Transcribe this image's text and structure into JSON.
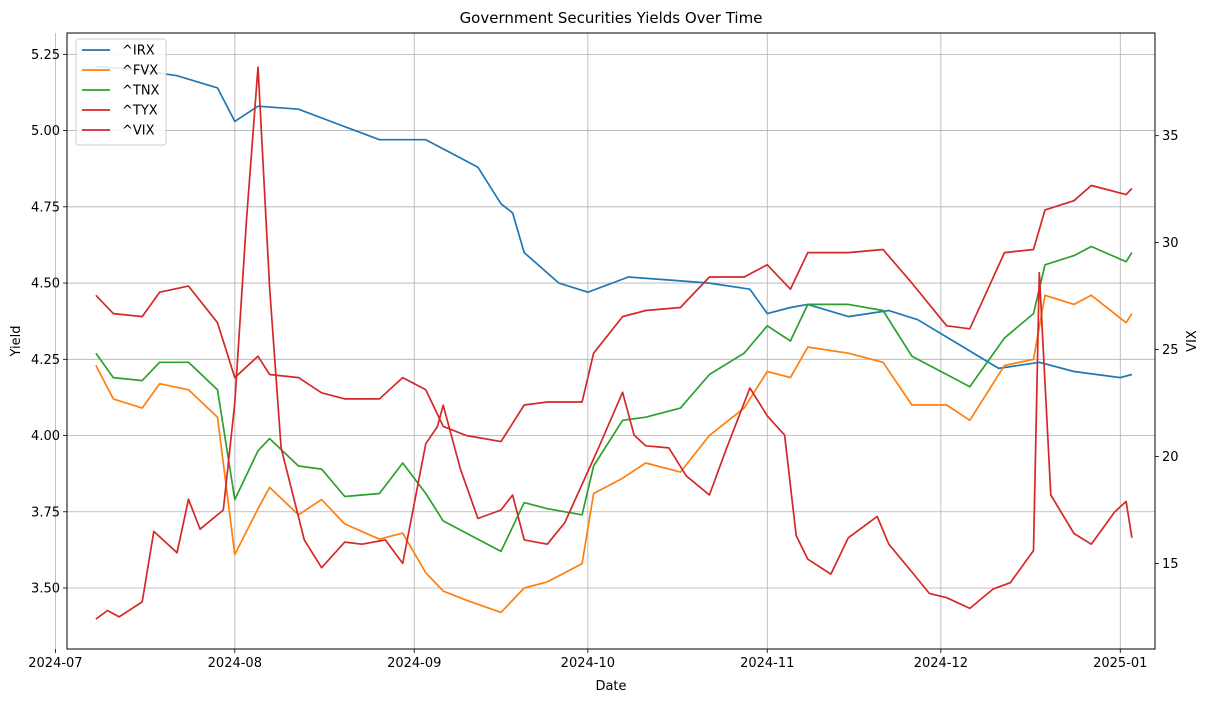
{
  "chart_data": {
    "type": "line",
    "title": "Government Securities Yields Over Time",
    "xlabel": "Date",
    "ylabel": "Yield",
    "y2label": "VIX",
    "xlim": [
      "2024-07-03",
      "2025-01-07"
    ],
    "ylim": [
      3.3,
      5.32
    ],
    "y2lim": [
      11.0,
      39.8
    ],
    "grid": true,
    "legend_position": "top-left",
    "x_ticks": [
      "2024-07",
      "2024-08",
      "2024-09",
      "2024-10",
      "2024-11",
      "2024-12",
      "2025-01"
    ],
    "x_tick_dates": [
      "2024-07-01",
      "2024-08-01",
      "2024-09-01",
      "2024-10-01",
      "2024-11-01",
      "2024-12-01",
      "2025-01-01"
    ],
    "y_ticks": [
      3.5,
      3.75,
      4.0,
      4.25,
      4.5,
      4.75,
      5.0,
      5.25
    ],
    "y_tick_labels": [
      "3.50",
      "3.75",
      "4.00",
      "4.25",
      "4.50",
      "4.75",
      "5.00",
      "5.25"
    ],
    "y2_ticks": [
      15,
      20,
      25,
      30,
      35
    ],
    "y2_tick_labels": [
      "15",
      "20",
      "25",
      "30",
      "35"
    ],
    "series": [
      {
        "name": "^IRX",
        "color": "#1f77b4",
        "axis": "left",
        "x": [
          "2024-07-08",
          "2024-07-15",
          "2024-07-22",
          "2024-07-29",
          "2024-08-01",
          "2024-08-05",
          "2024-08-12",
          "2024-08-19",
          "2024-08-26",
          "2024-09-03",
          "2024-09-09",
          "2024-09-12",
          "2024-09-16",
          "2024-09-18",
          "2024-09-20",
          "2024-09-26",
          "2024-10-01",
          "2024-10-08",
          "2024-10-15",
          "2024-10-22",
          "2024-10-29",
          "2024-11-01",
          "2024-11-05",
          "2024-11-08",
          "2024-11-15",
          "2024-11-22",
          "2024-11-27",
          "2024-12-04",
          "2024-12-11",
          "2024-12-18",
          "2024-12-24",
          "2025-01-01",
          "2025-01-03"
        ],
        "y": [
          5.21,
          5.2,
          5.18,
          5.14,
          5.03,
          5.08,
          5.07,
          5.02,
          4.97,
          4.97,
          4.91,
          4.88,
          4.76,
          4.73,
          4.6,
          4.5,
          4.47,
          4.52,
          4.51,
          4.5,
          4.48,
          4.4,
          4.42,
          4.43,
          4.39,
          4.41,
          4.38,
          4.3,
          4.22,
          4.24,
          4.21,
          4.19,
          4.2
        ]
      },
      {
        "name": "^FVX",
        "color": "#ff7f0e",
        "axis": "left",
        "x": [
          "2024-07-08",
          "2024-07-11",
          "2024-07-16",
          "2024-07-19",
          "2024-07-24",
          "2024-07-29",
          "2024-08-01",
          "2024-08-05",
          "2024-08-07",
          "2024-08-12",
          "2024-08-16",
          "2024-08-20",
          "2024-08-26",
          "2024-08-30",
          "2024-09-03",
          "2024-09-06",
          "2024-09-10",
          "2024-09-16",
          "2024-09-20",
          "2024-09-24",
          "2024-09-30",
          "2024-10-02",
          "2024-10-07",
          "2024-10-11",
          "2024-10-17",
          "2024-10-22",
          "2024-10-28",
          "2024-11-01",
          "2024-11-05",
          "2024-11-08",
          "2024-11-15",
          "2024-11-21",
          "2024-11-26",
          "2024-12-02",
          "2024-12-06",
          "2024-12-12",
          "2024-12-17",
          "2024-12-19",
          "2024-12-24",
          "2024-12-27",
          "2025-01-02",
          "2025-01-03"
        ],
        "y": [
          4.23,
          4.12,
          4.09,
          4.17,
          4.15,
          4.06,
          3.61,
          3.76,
          3.83,
          3.74,
          3.79,
          3.71,
          3.66,
          3.68,
          3.55,
          3.49,
          3.46,
          3.42,
          3.5,
          3.52,
          3.58,
          3.81,
          3.86,
          3.91,
          3.88,
          4.0,
          4.09,
          4.21,
          4.19,
          4.29,
          4.27,
          4.24,
          4.1,
          4.1,
          4.05,
          4.23,
          4.25,
          4.46,
          4.43,
          4.46,
          4.37,
          4.4
        ]
      },
      {
        "name": "^TNX",
        "color": "#2ca02c",
        "axis": "left",
        "x": [
          "2024-07-08",
          "2024-07-11",
          "2024-07-16",
          "2024-07-19",
          "2024-07-24",
          "2024-07-29",
          "2024-08-01",
          "2024-08-05",
          "2024-08-07",
          "2024-08-12",
          "2024-08-16",
          "2024-08-20",
          "2024-08-26",
          "2024-08-30",
          "2024-09-03",
          "2024-09-06",
          "2024-09-10",
          "2024-09-16",
          "2024-09-20",
          "2024-09-24",
          "2024-09-30",
          "2024-10-02",
          "2024-10-07",
          "2024-10-11",
          "2024-10-17",
          "2024-10-22",
          "2024-10-28",
          "2024-11-01",
          "2024-11-05",
          "2024-11-08",
          "2024-11-15",
          "2024-11-21",
          "2024-11-26",
          "2024-12-02",
          "2024-12-06",
          "2024-12-12",
          "2024-12-17",
          "2024-12-19",
          "2024-12-24",
          "2024-12-27",
          "2025-01-02",
          "2025-01-03"
        ],
        "y": [
          4.27,
          4.19,
          4.18,
          4.24,
          4.24,
          4.15,
          3.79,
          3.95,
          3.99,
          3.9,
          3.89,
          3.8,
          3.81,
          3.91,
          3.81,
          3.72,
          3.68,
          3.62,
          3.78,
          3.76,
          3.74,
          3.9,
          4.05,
          4.06,
          4.09,
          4.2,
          4.27,
          4.36,
          4.31,
          4.43,
          4.43,
          4.41,
          4.26,
          4.2,
          4.16,
          4.32,
          4.4,
          4.56,
          4.59,
          4.62,
          4.57,
          4.6
        ]
      },
      {
        "name": "^TYX",
        "color": "#d62728",
        "axis": "left",
        "x": [
          "2024-07-08",
          "2024-07-11",
          "2024-07-16",
          "2024-07-19",
          "2024-07-24",
          "2024-07-29",
          "2024-08-01",
          "2024-08-05",
          "2024-08-07",
          "2024-08-12",
          "2024-08-16",
          "2024-08-20",
          "2024-08-26",
          "2024-08-30",
          "2024-09-03",
          "2024-09-06",
          "2024-09-10",
          "2024-09-16",
          "2024-09-20",
          "2024-09-24",
          "2024-09-30",
          "2024-10-02",
          "2024-10-07",
          "2024-10-11",
          "2024-10-17",
          "2024-10-22",
          "2024-10-28",
          "2024-11-01",
          "2024-11-05",
          "2024-11-08",
          "2024-11-15",
          "2024-11-21",
          "2024-11-26",
          "2024-12-02",
          "2024-12-06",
          "2024-12-12",
          "2024-12-17",
          "2024-12-19",
          "2024-12-24",
          "2024-12-27",
          "2025-01-02",
          "2025-01-03"
        ],
        "y": [
          4.46,
          4.4,
          4.39,
          4.47,
          4.49,
          4.37,
          4.19,
          4.26,
          4.2,
          4.19,
          4.14,
          4.12,
          4.12,
          4.19,
          4.15,
          4.03,
          4.0,
          3.98,
          4.1,
          4.11,
          4.11,
          4.27,
          4.39,
          4.41,
          4.42,
          4.52,
          4.52,
          4.56,
          4.48,
          4.6,
          4.6,
          4.61,
          4.5,
          4.36,
          4.35,
          4.6,
          4.61,
          4.74,
          4.77,
          4.82,
          4.79,
          4.81
        ]
      },
      {
        "name": "^VIX",
        "color": "#d62728",
        "axis": "right",
        "x": [
          "2024-07-08",
          "2024-07-10",
          "2024-07-12",
          "2024-07-16",
          "2024-07-18",
          "2024-07-22",
          "2024-07-24",
          "2024-07-26",
          "2024-07-30",
          "2024-08-01",
          "2024-08-03",
          "2024-08-05",
          "2024-08-07",
          "2024-08-09",
          "2024-08-13",
          "2024-08-16",
          "2024-08-20",
          "2024-08-23",
          "2024-08-27",
          "2024-08-30",
          "2024-09-03",
          "2024-09-05",
          "2024-09-06",
          "2024-09-09",
          "2024-09-12",
          "2024-09-16",
          "2024-09-18",
          "2024-09-20",
          "2024-09-24",
          "2024-09-27",
          "2024-10-01",
          "2024-10-03",
          "2024-10-07",
          "2024-10-09",
          "2024-10-11",
          "2024-10-15",
          "2024-10-18",
          "2024-10-22",
          "2024-10-25",
          "2024-10-29",
          "2024-11-01",
          "2024-11-04",
          "2024-11-06",
          "2024-11-08",
          "2024-11-12",
          "2024-11-15",
          "2024-11-20",
          "2024-11-22",
          "2024-11-26",
          "2024-11-29",
          "2024-12-02",
          "2024-12-06",
          "2024-12-10",
          "2024-12-13",
          "2024-12-17",
          "2024-12-18",
          "2024-12-20",
          "2024-12-24",
          "2024-12-27",
          "2024-12-31",
          "2025-01-02",
          "2025-01-03"
        ],
        "y": [
          12.4,
          12.8,
          12.5,
          13.2,
          16.5,
          15.5,
          18.0,
          16.6,
          17.5,
          22.5,
          31.0,
          38.2,
          27.9,
          20.4,
          16.1,
          14.8,
          16.0,
          15.9,
          16.1,
          15.0,
          20.6,
          21.4,
          22.4,
          19.4,
          17.1,
          17.5,
          18.2,
          16.1,
          15.9,
          16.9,
          19.3,
          20.5,
          23.0,
          21.0,
          20.5,
          20.4,
          19.1,
          18.2,
          20.4,
          23.2,
          21.9,
          21.0,
          16.3,
          15.2,
          14.5,
          16.2,
          17.2,
          15.9,
          14.6,
          13.6,
          13.4,
          12.9,
          13.8,
          14.1,
          15.6,
          28.6,
          18.2,
          16.4,
          15.9,
          17.4,
          17.9,
          16.2
        ]
      }
    ]
  }
}
